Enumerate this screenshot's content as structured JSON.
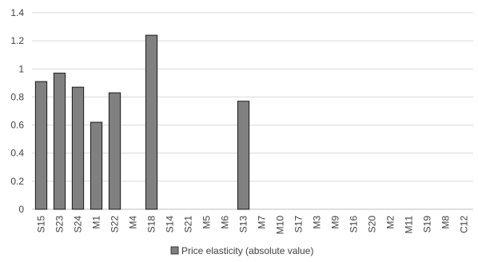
{
  "chart_data": {
    "type": "bar",
    "title": "",
    "xlabel": "",
    "ylabel": "",
    "categories": [
      "S15",
      "S23",
      "S24",
      "M1",
      "S22",
      "M4",
      "S18",
      "S14",
      "S21",
      "M5",
      "M6",
      "S13",
      "M7",
      "M10",
      "S17",
      "M3",
      "M9",
      "S16",
      "S20",
      "M2",
      "M11",
      "S19",
      "M8",
      "C12"
    ],
    "series": [
      {
        "name": "Price elasticity (absolute value)",
        "values": [
          0.91,
          0.97,
          0.87,
          0.62,
          0.83,
          0,
          1.24,
          0,
          0,
          0,
          0,
          0.77,
          0,
          0,
          0,
          0,
          0,
          0,
          0,
          0,
          0,
          0,
          0,
          0
        ]
      }
    ],
    "ylim": [
      0,
      1.4
    ],
    "yticks": [
      "0",
      "0.2",
      "0.4",
      "0.6",
      "0.8",
      "1",
      "1.2",
      "1.4"
    ],
    "grid": true,
    "legend_position": "bottom",
    "colors": {
      "bar_fill": "#808080",
      "bar_stroke": "#1a1a1a",
      "grid": "#d9d9d9",
      "axis": "#bfbfbf"
    }
  }
}
